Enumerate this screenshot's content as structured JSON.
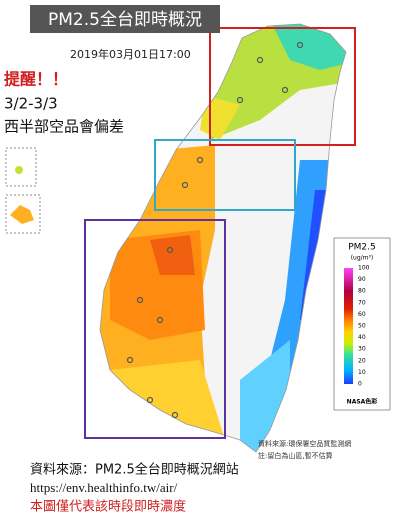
{
  "header": {
    "title": "PM2.5全台即時概況",
    "timestamp": "2019年03月01日17:00"
  },
  "alert": {
    "heading": "提醒！！",
    "dates": "3/2-3/3",
    "message": "西半部空品會偏差"
  },
  "legend": {
    "title": "PM2.5",
    "unit": "(ug/m³)",
    "ticks": [
      100,
      90,
      80,
      70,
      60,
      50,
      40,
      30,
      20,
      10,
      0
    ],
    "credit": "NASA色彩"
  },
  "map_notes": {
    "source": "資料來源:環保署空品質監測網",
    "note": "註:留白為山區,暫不估算"
  },
  "footer": {
    "source": "資料來源：PM2.5全台即時概況網站",
    "url": "https://env.healthinfo.tw/air/",
    "disclaimer": "本圖僅代表該時段即時濃度"
  }
}
